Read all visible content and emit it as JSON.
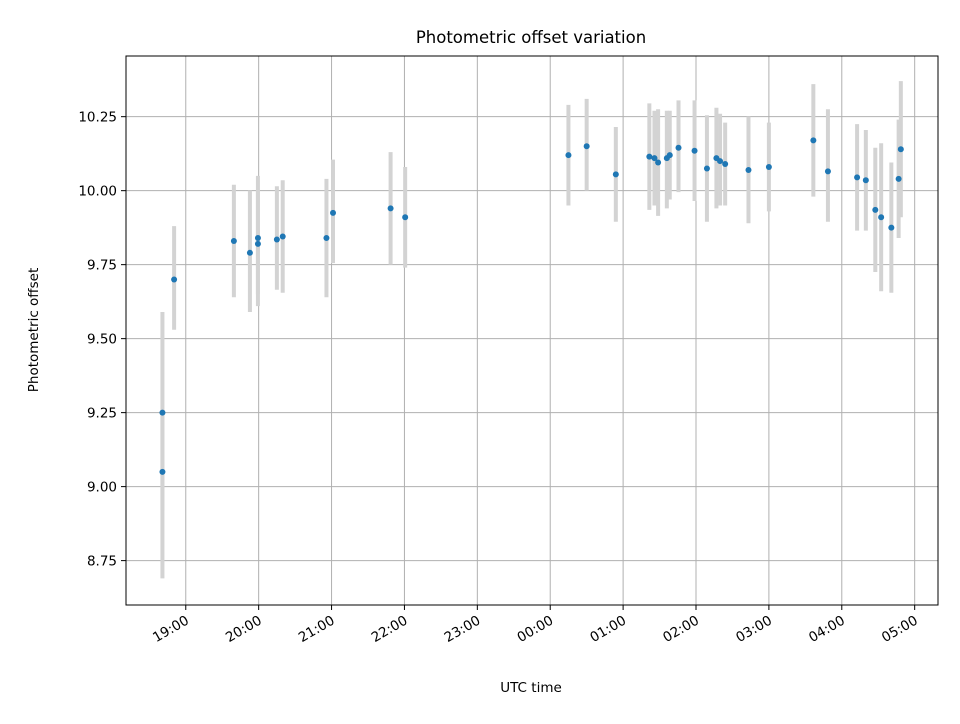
{
  "chart_data": {
    "type": "scatter",
    "title": "Photometric offset variation",
    "xlabel": "UTC time",
    "ylabel": "Photometric offset",
    "x_unit": "hours since 19:00 UTC",
    "xlim": [
      -0.82,
      10.32
    ],
    "ylim": [
      8.6,
      10.455
    ],
    "grid": true,
    "x_ticks": [
      {
        "value": 0,
        "label": "19:00"
      },
      {
        "value": 1,
        "label": "20:00"
      },
      {
        "value": 2,
        "label": "21:00"
      },
      {
        "value": 3,
        "label": "22:00"
      },
      {
        "value": 4,
        "label": "23:00"
      },
      {
        "value": 5,
        "label": "00:00"
      },
      {
        "value": 6,
        "label": "01:00"
      },
      {
        "value": 7,
        "label": "02:00"
      },
      {
        "value": 8,
        "label": "03:00"
      },
      {
        "value": 9,
        "label": "04:00"
      },
      {
        "value": 10,
        "label": "05:00"
      }
    ],
    "y_ticks": [
      {
        "value": 8.75,
        "label": "8.75"
      },
      {
        "value": 9.0,
        "label": "9.00"
      },
      {
        "value": 9.25,
        "label": "9.25"
      },
      {
        "value": 9.5,
        "label": "9.50"
      },
      {
        "value": 9.75,
        "label": "9.75"
      },
      {
        "value": 10.0,
        "label": "10.00"
      },
      {
        "value": 10.25,
        "label": "10.25"
      }
    ],
    "colors": {
      "points": "#1f77b4",
      "error_bars": "#d3d3d3",
      "grid": "#b0b0b0"
    },
    "points": [
      {
        "x": -0.32,
        "y": 9.05,
        "err_low": 0.36,
        "err_high": 0.2
      },
      {
        "x": -0.32,
        "y": 9.25,
        "err_low": 0.33,
        "err_high": 0.34
      },
      {
        "x": -0.16,
        "y": 9.7,
        "err_low": 0.17,
        "err_high": 0.18
      },
      {
        "x": 0.66,
        "y": 9.83,
        "err_low": 0.19,
        "err_high": 0.19
      },
      {
        "x": 0.88,
        "y": 9.79,
        "err_low": 0.2,
        "err_high": 0.21
      },
      {
        "x": 0.99,
        "y": 9.84,
        "err_low": 0.19,
        "err_high": 0.21
      },
      {
        "x": 0.99,
        "y": 9.82,
        "err_low": 0.21,
        "err_high": 0.18
      },
      {
        "x": 1.25,
        "y": 9.835,
        "err_low": 0.17,
        "err_high": 0.18
      },
      {
        "x": 1.33,
        "y": 9.845,
        "err_low": 0.19,
        "err_high": 0.19
      },
      {
        "x": 1.93,
        "y": 9.84,
        "err_low": 0.2,
        "err_high": 0.2
      },
      {
        "x": 2.02,
        "y": 9.925,
        "err_low": 0.17,
        "err_high": 0.18
      },
      {
        "x": 2.81,
        "y": 9.94,
        "err_low": 0.19,
        "err_high": 0.19
      },
      {
        "x": 3.01,
        "y": 9.91,
        "err_low": 0.17,
        "err_high": 0.17
      },
      {
        "x": 5.25,
        "y": 10.12,
        "err_low": 0.17,
        "err_high": 0.17
      },
      {
        "x": 5.5,
        "y": 10.15,
        "err_low": 0.15,
        "err_high": 0.16
      },
      {
        "x": 5.9,
        "y": 10.055,
        "err_low": 0.16,
        "err_high": 0.16
      },
      {
        "x": 6.36,
        "y": 10.115,
        "err_low": 0.18,
        "err_high": 0.18
      },
      {
        "x": 6.43,
        "y": 10.11,
        "err_low": 0.16,
        "err_high": 0.16
      },
      {
        "x": 6.48,
        "y": 10.095,
        "err_low": 0.18,
        "err_high": 0.18
      },
      {
        "x": 6.6,
        "y": 10.11,
        "err_low": 0.17,
        "err_high": 0.16
      },
      {
        "x": 6.64,
        "y": 10.12,
        "err_low": 0.15,
        "err_high": 0.15
      },
      {
        "x": 6.76,
        "y": 10.145,
        "err_low": 0.15,
        "err_high": 0.16
      },
      {
        "x": 6.98,
        "y": 10.135,
        "err_low": 0.17,
        "err_high": 0.17
      },
      {
        "x": 7.15,
        "y": 10.075,
        "err_low": 0.18,
        "err_high": 0.18
      },
      {
        "x": 7.28,
        "y": 10.11,
        "err_low": 0.17,
        "err_high": 0.17
      },
      {
        "x": 7.33,
        "y": 10.1,
        "err_low": 0.15,
        "err_high": 0.16
      },
      {
        "x": 7.4,
        "y": 10.09,
        "err_low": 0.14,
        "err_high": 0.14
      },
      {
        "x": 7.72,
        "y": 10.07,
        "err_low": 0.18,
        "err_high": 0.18
      },
      {
        "x": 8.0,
        "y": 10.08,
        "err_low": 0.15,
        "err_high": 0.15
      },
      {
        "x": 8.61,
        "y": 10.17,
        "err_low": 0.19,
        "err_high": 0.19
      },
      {
        "x": 8.81,
        "y": 10.065,
        "err_low": 0.17,
        "err_high": 0.21
      },
      {
        "x": 9.21,
        "y": 10.045,
        "err_low": 0.18,
        "err_high": 0.18
      },
      {
        "x": 9.33,
        "y": 10.035,
        "err_low": 0.17,
        "err_high": 0.17
      },
      {
        "x": 9.46,
        "y": 9.935,
        "err_low": 0.21,
        "err_high": 0.21
      },
      {
        "x": 9.54,
        "y": 9.91,
        "err_low": 0.25,
        "err_high": 0.25
      },
      {
        "x": 9.68,
        "y": 9.875,
        "err_low": 0.22,
        "err_high": 0.22
      },
      {
        "x": 9.78,
        "y": 10.04,
        "err_low": 0.2,
        "err_high": 0.2
      },
      {
        "x": 9.81,
        "y": 10.14,
        "err_low": 0.23,
        "err_high": 0.23
      }
    ]
  }
}
